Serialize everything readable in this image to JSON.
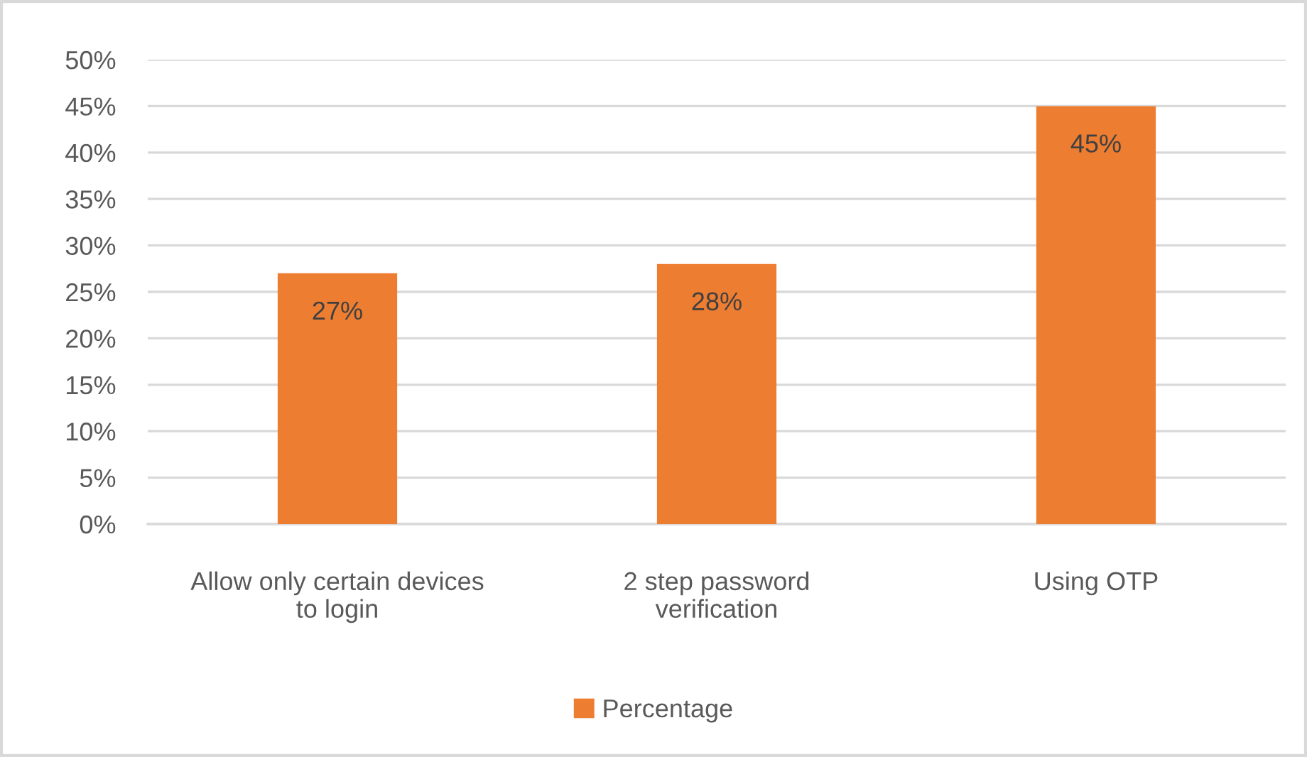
{
  "chart_data": {
    "type": "bar",
    "categories": [
      "Allow only certain devices\nto login",
      "2 step password\nverification",
      "Using OTP"
    ],
    "series": [
      {
        "name": "Percentage",
        "color": "#ed7d31",
        "values": [
          27,
          28,
          45
        ],
        "value_labels": [
          "27%",
          "28%",
          "45%"
        ]
      }
    ],
    "ylim": [
      0,
      50
    ],
    "yticks": [
      {
        "value": 0,
        "label": "0%"
      },
      {
        "value": 5,
        "label": "5%"
      },
      {
        "value": 10,
        "label": "10%"
      },
      {
        "value": 15,
        "label": "15%"
      },
      {
        "value": 20,
        "label": "20%"
      },
      {
        "value": 25,
        "label": "25%"
      },
      {
        "value": 30,
        "label": "30%"
      },
      {
        "value": 35,
        "label": "35%"
      },
      {
        "value": 40,
        "label": "40%"
      },
      {
        "value": 45,
        "label": "45%"
      },
      {
        "value": 50,
        "label": "50%"
      }
    ],
    "grid": "y",
    "legend": "bottom"
  }
}
